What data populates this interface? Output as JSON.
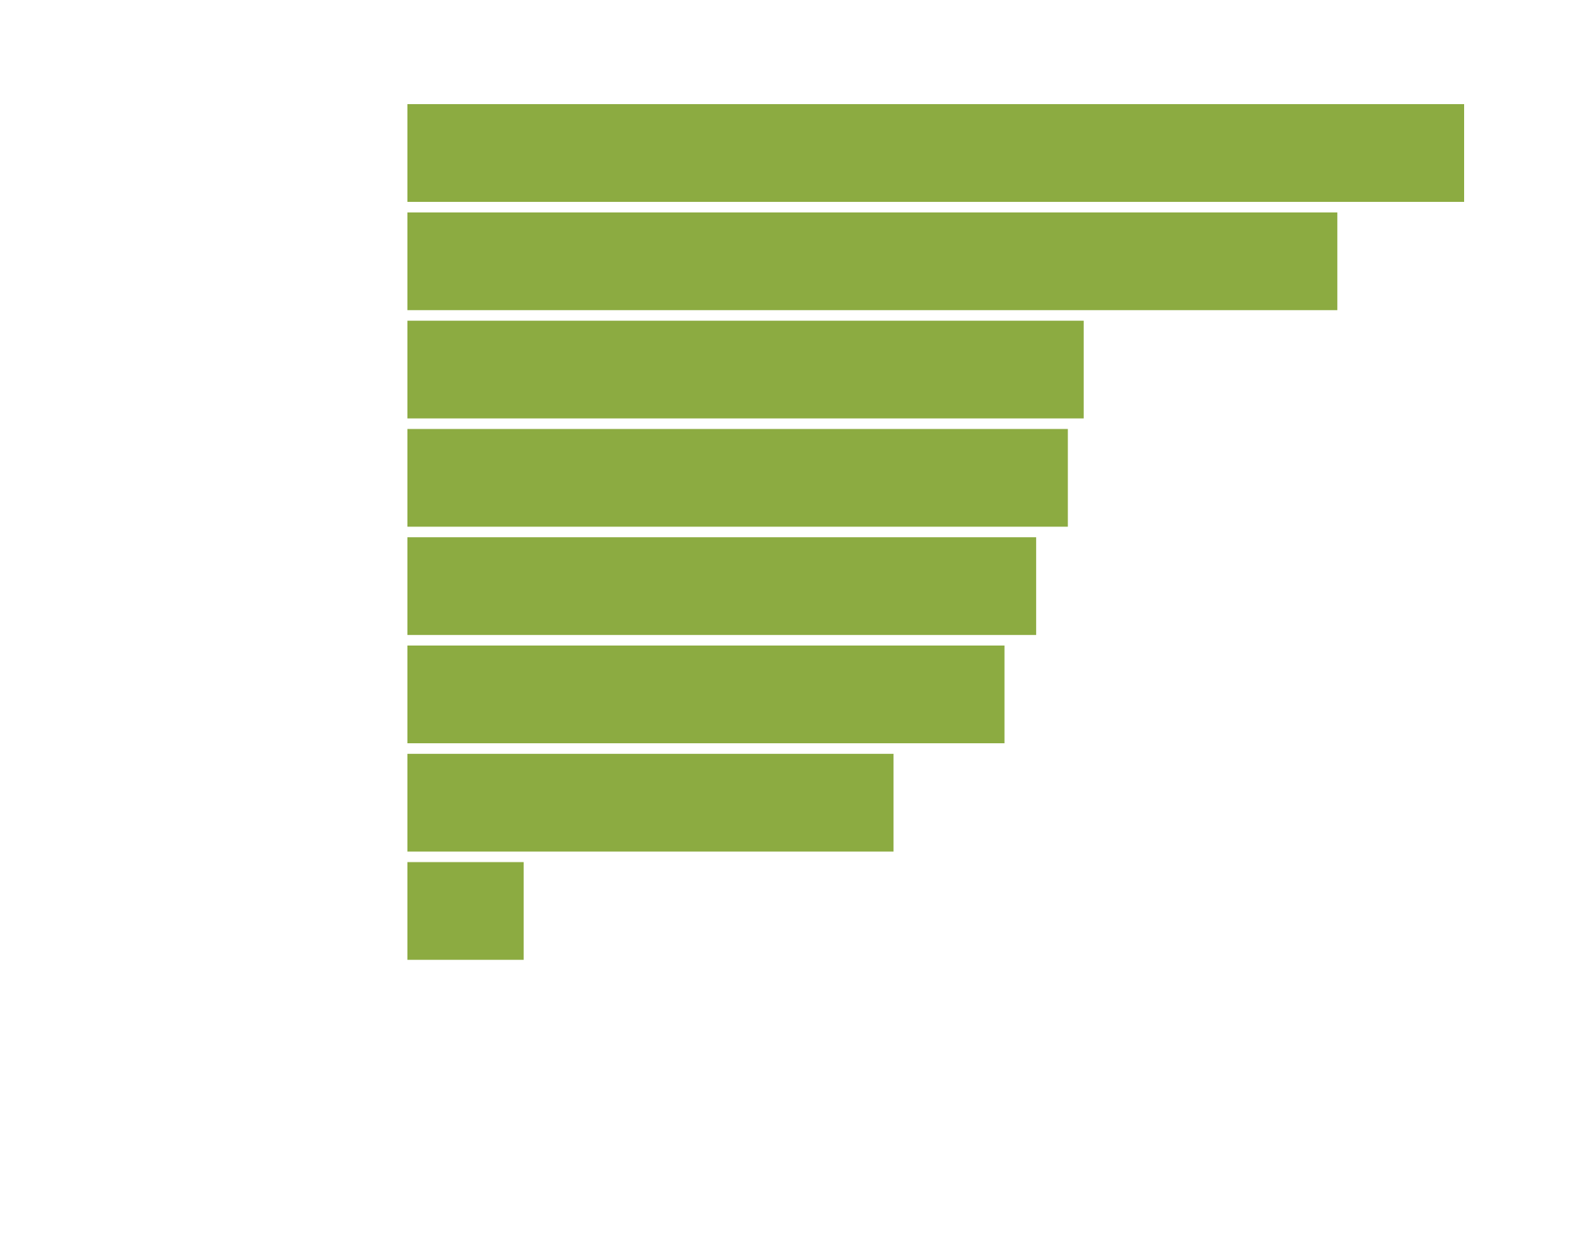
{
  "chart_data": {
    "type": "bar",
    "orientation": "horizontal",
    "title": "",
    "xlabel": "",
    "ylabel": "",
    "categories": [
      "",
      "",
      "",
      "",
      "",
      "",
      "",
      ""
    ],
    "values": [
      100,
      88,
      64,
      62.5,
      59.5,
      56.5,
      46,
      11
    ],
    "xlim": [
      0,
      100
    ],
    "grid": false,
    "legend": "none",
    "bar_color": "#8cab41"
  }
}
